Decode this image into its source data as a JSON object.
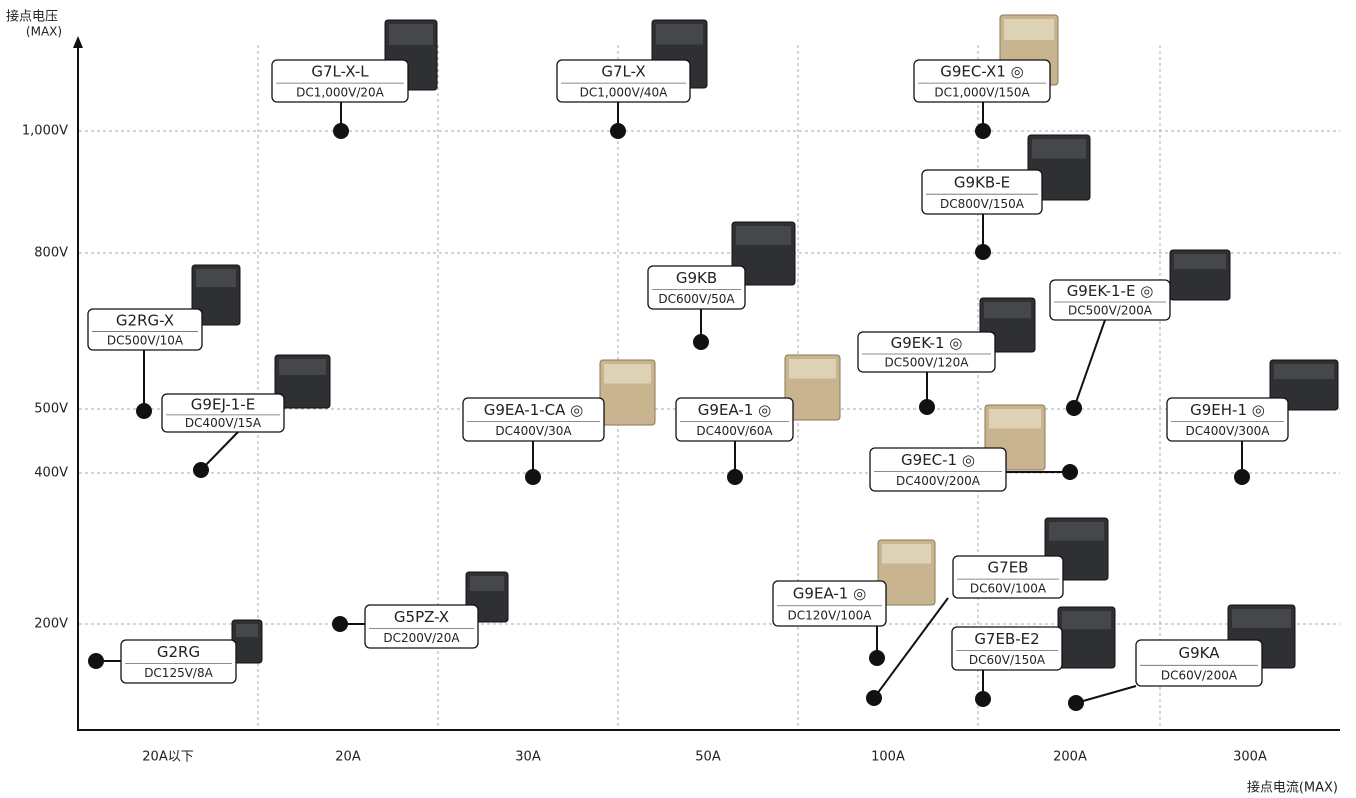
{
  "y_axis_title": "接点电压",
  "y_axis_unit": "(MAX)",
  "x_axis_title": "接点电流(MAX)",
  "y_tick_labels": [
    "1,000V",
    "800V",
    "500V",
    "400V",
    "200V"
  ],
  "x_tick_labels": [
    "20A以下",
    "20A",
    "30A",
    "50A",
    "100A",
    "200A",
    "300A"
  ],
  "products": [
    {
      "name": "G7L-X-L",
      "spec": "DC1,000V/20A"
    },
    {
      "name": "G7L-X",
      "spec": "DC1,000V/40A"
    },
    {
      "name": "G9EC-X1 ◎",
      "spec": "DC1,000V/150A"
    },
    {
      "name": "G9KB-E",
      "spec": "DC800V/150A"
    },
    {
      "name": "G9KB",
      "spec": "DC600V/50A"
    },
    {
      "name": "G2RG-X",
      "spec": "DC500V/10A"
    },
    {
      "name": "G9EJ-1-E",
      "spec": "DC400V/15A"
    },
    {
      "name": "G9EA-1-CA ◎",
      "spec": "DC400V/30A"
    },
    {
      "name": "G9EA-1 ◎",
      "spec": "DC400V/60A"
    },
    {
      "name": "G9EK-1 ◎",
      "spec": "DC500V/120A"
    },
    {
      "name": "G9EK-1-E ◎",
      "spec": "DC500V/200A"
    },
    {
      "name": "G9EH-1 ◎",
      "spec": "DC400V/300A"
    },
    {
      "name": "G9EC-1 ◎",
      "spec": "DC400V/200A"
    },
    {
      "name": "G7EB",
      "spec": "DC60V/100A"
    },
    {
      "name": "G9EA-1 ◎",
      "spec": "DC120V/100A"
    },
    {
      "name": "G7EB-E2",
      "spec": "DC60V/150A"
    },
    {
      "name": "G9KA",
      "spec": "DC60V/200A"
    },
    {
      "name": "G5PZ-X",
      "spec": "DC200V/20A"
    },
    {
      "name": "G2RG",
      "spec": "DC125V/8A"
    }
  ]
}
